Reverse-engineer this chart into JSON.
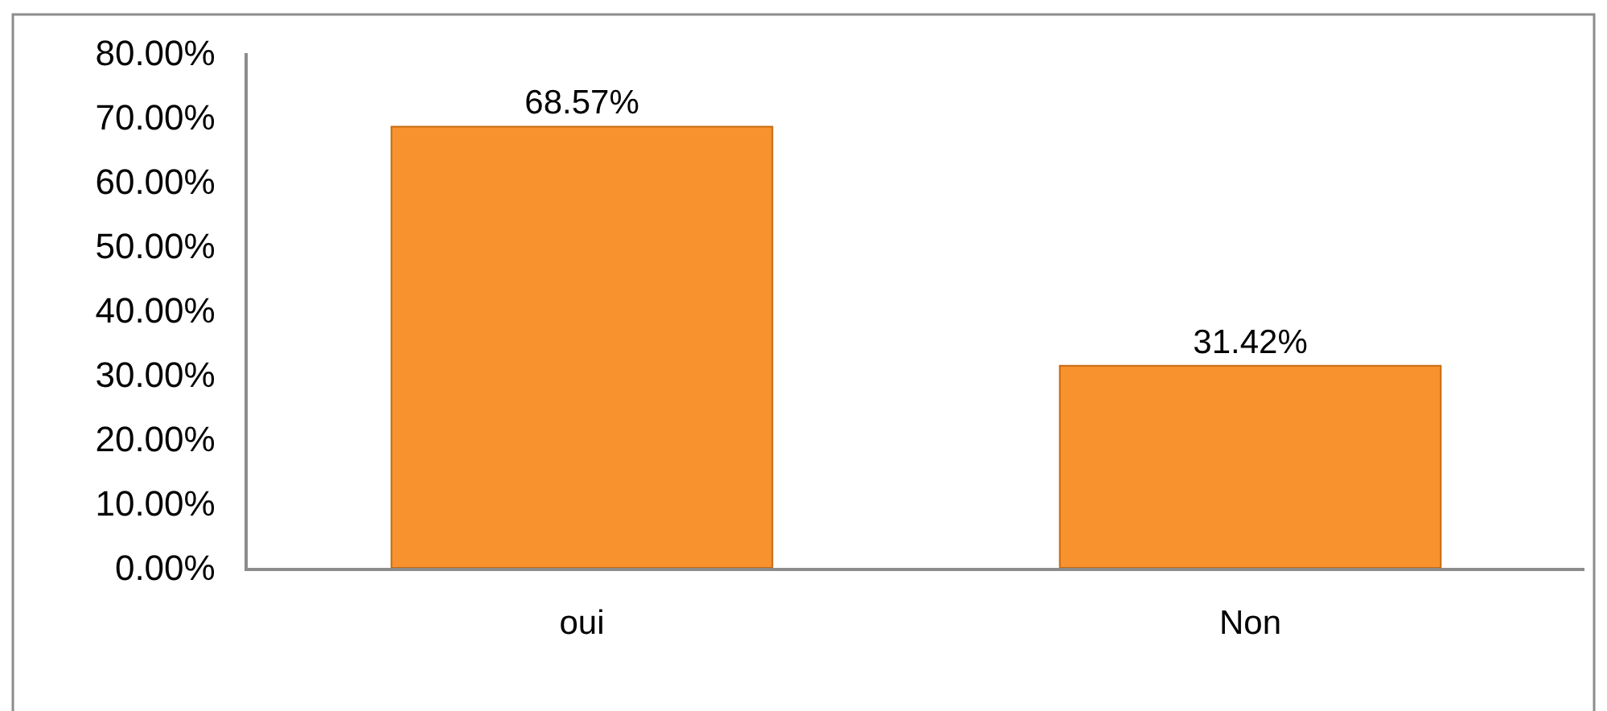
{
  "chart_data": {
    "type": "bar",
    "categories": [
      "oui",
      "Non"
    ],
    "series": [
      {
        "color": "#f7922e",
        "values": [
          68.57,
          31.42
        ],
        "value_labels": [
          "68.57%",
          "31.42%"
        ]
      }
    ],
    "ylim": [
      0,
      80
    ],
    "yticks": [
      {
        "value": 0,
        "label": "0.00%"
      },
      {
        "value": 10,
        "label": "10.00%"
      },
      {
        "value": 20,
        "label": "20.00%"
      },
      {
        "value": 30,
        "label": "30.00%"
      },
      {
        "value": 40,
        "label": "40.00%"
      },
      {
        "value": 50,
        "label": "50.00%"
      },
      {
        "value": 60,
        "label": "60.00%"
      },
      {
        "value": 70,
        "label": "70.00%"
      },
      {
        "value": 80,
        "label": "80.00%"
      }
    ],
    "grid": false
  }
}
